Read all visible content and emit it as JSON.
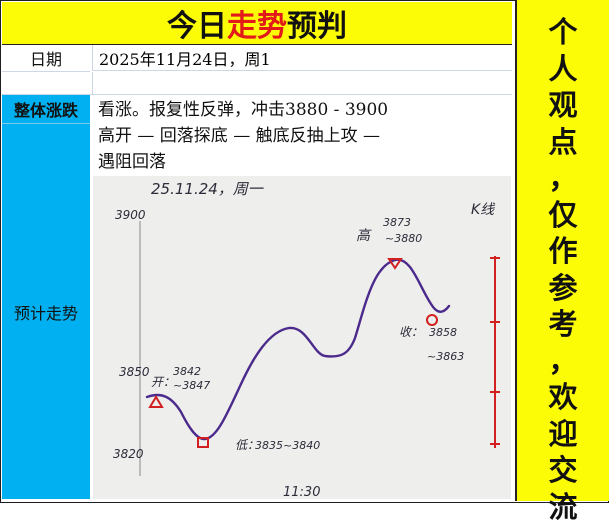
{
  "title": {
    "prefix": "今日",
    "highlight": "走势",
    "suffix": "预判"
  },
  "colors": {
    "banner": "#fdfc07",
    "highlight": "#e31a1a",
    "label_column": "#00b0f0",
    "curve": "#4b2a8c",
    "markers": "#d22020"
  },
  "date_row": {
    "label": "日期",
    "value": "2025年11月24日，周1"
  },
  "overall": {
    "label": "整体涨跌",
    "line1": "看涨。报复性反弹，冲击3880 - 3900",
    "line2": "高开 — 回落探底 — 触底反抽上攻 —",
    "line3": "遇阻回落"
  },
  "forecast_label": "预计走势",
  "sidebar_text": [
    "个",
    "人",
    "观",
    "点",
    "，",
    "仅",
    "作",
    "参",
    "考",
    "，",
    "欢",
    "迎",
    "交",
    "流"
  ],
  "sketch": {
    "header": "25.11.24，周一",
    "y_top": "3900",
    "y_mid": "3850",
    "y_bottom": "3820",
    "x_mid": "11:30",
    "corner_mark": "K线",
    "open_label": "开：",
    "open_values": [
      "3842",
      "~3847"
    ],
    "low_label": "低：",
    "low_values": "3835~3840",
    "high_label": "高",
    "high_values": [
      "3873",
      "~3880"
    ],
    "close_label": "收：",
    "close_values": [
      "3858",
      "~3863"
    ]
  }
}
